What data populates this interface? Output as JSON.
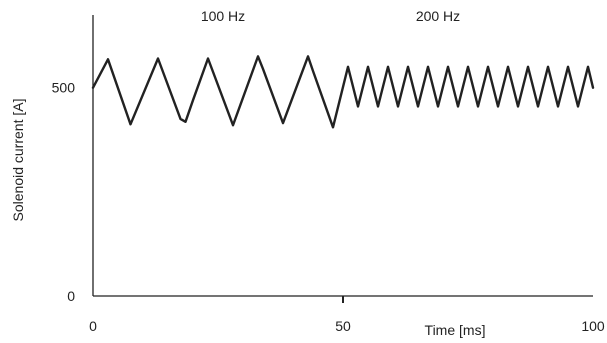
{
  "chart_data": {
    "type": "line",
    "title": "",
    "xlabel": "Time [ms]",
    "ylabel": "Solenoid current [A]",
    "xlim": [
      0,
      100
    ],
    "ylim": [
      0,
      600
    ],
    "xticks": [
      {
        "value": 0,
        "label": "0"
      },
      {
        "value": 50,
        "label": "50"
      },
      {
        "value": 100,
        "label": "100"
      }
    ],
    "yticks": [
      {
        "value": 0,
        "label": "0"
      },
      {
        "value": 500,
        "label": "500"
      }
    ],
    "grid": false,
    "annotations": [
      {
        "text": "100 Hz",
        "x": 26,
        "y": 650
      },
      {
        "text": "200 Hz",
        "x": 69,
        "y": 650
      }
    ],
    "series": [
      {
        "name": "",
        "color": "#222222",
        "x": [
          0,
          3,
          7.5,
          13,
          17.5,
          18.5,
          20,
          23,
          28,
          33,
          34,
          38,
          43,
          44,
          48,
          51,
          53,
          55,
          57,
          59,
          61,
          63,
          65,
          67,
          69,
          71,
          73,
          75,
          77,
          79,
          81,
          83,
          85,
          87,
          89,
          91,
          93,
          95,
          97,
          99,
          100
        ],
        "y": [
          500,
          568,
          412,
          570,
          425,
          418,
          470,
          570,
          410,
          575,
          545,
          415,
          575,
          540,
          405,
          550,
          455,
          550,
          455,
          550,
          455,
          550,
          455,
          550,
          455,
          550,
          455,
          550,
          455,
          550,
          455,
          550,
          455,
          550,
          455,
          550,
          455,
          550,
          455,
          550,
          500
        ]
      }
    ]
  }
}
